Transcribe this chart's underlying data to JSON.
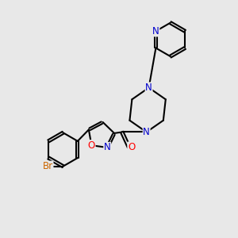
{
  "bg_color": "#e8e8e8",
  "bond_color": "#000000",
  "N_color": "#0000cc",
  "O_color": "#ff0000",
  "Br_color": "#cc6600",
  "bond_width": 1.5,
  "font_size_atom": 8.5,
  "fig_size": [
    3.0,
    3.0
  ],
  "dpi": 100,
  "xlim": [
    0,
    10
  ],
  "ylim": [
    0,
    10
  ]
}
